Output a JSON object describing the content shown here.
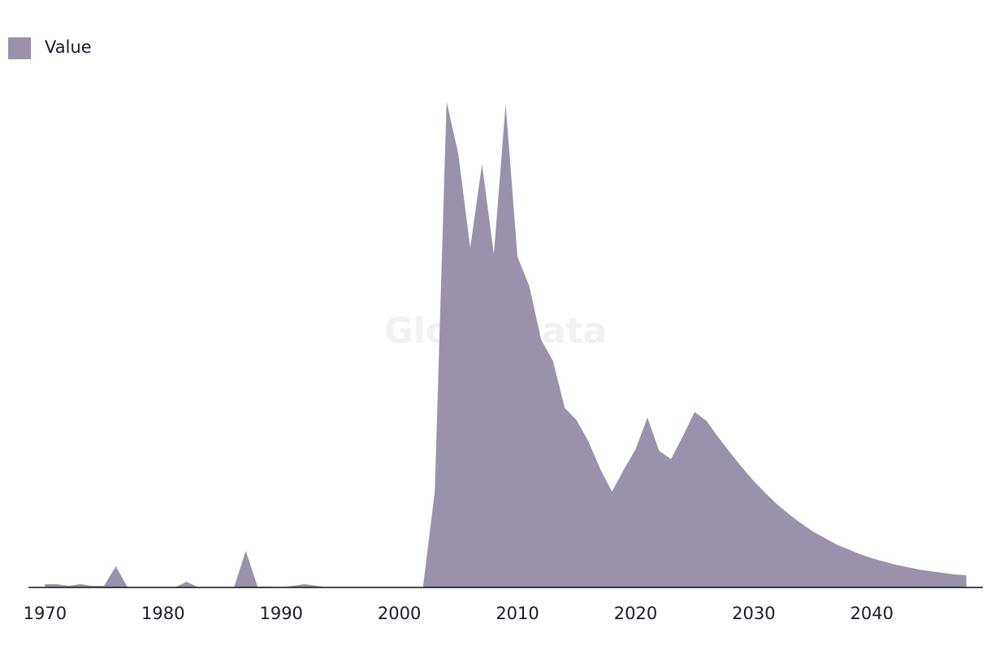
{
  "chart_data": {
    "type": "area",
    "watermark": "GlobalData",
    "x": [
      1970,
      1971,
      1972,
      1973,
      1974,
      1975,
      1976,
      1977,
      1978,
      1979,
      1980,
      1981,
      1982,
      1983,
      1984,
      1985,
      1986,
      1987,
      1988,
      1989,
      1990,
      1991,
      1992,
      1993,
      1994,
      1995,
      1996,
      1997,
      1998,
      1999,
      2000,
      2001,
      2002,
      2003,
      2004,
      2005,
      2006,
      2007,
      2008,
      2009,
      2010,
      2011,
      2012,
      2013,
      2014,
      2015,
      2016,
      2017,
      2018,
      2019,
      2020,
      2021,
      2022,
      2023,
      2024,
      2025,
      2026,
      2027,
      2028,
      2029,
      2030,
      2031,
      2032,
      2033,
      2034,
      2035,
      2036,
      2037,
      2038,
      2039,
      2040,
      2041,
      2042,
      2043,
      2044,
      2045,
      2046,
      2047,
      2048
    ],
    "series": [
      {
        "name": "Value",
        "color": "#9a92aa",
        "values": [
          4,
          4,
          2,
          4,
          2,
          2,
          26,
          0,
          0,
          0,
          0,
          0,
          7,
          0,
          0,
          0,
          0,
          45,
          1,
          1,
          0,
          2,
          4,
          2,
          0,
          0,
          0,
          0,
          0,
          0,
          0,
          0,
          0,
          118,
          598,
          533,
          418,
          521,
          410,
          595,
          407,
          371,
          305,
          279,
          221,
          206,
          180,
          146,
          118,
          145,
          170,
          209,
          168,
          158,
          186,
          216,
          205,
          185,
          166,
          148,
          131,
          116,
          102,
          90,
          79,
          69,
          61,
          53,
          47,
          41,
          36,
          32,
          28,
          25,
          22,
          20,
          18,
          16,
          15
        ]
      }
    ],
    "xlim": [
      1968.6,
      2049.4
    ],
    "xticks": [
      1970,
      1980,
      1990,
      2000,
      2010,
      2020,
      2030,
      2040
    ],
    "ylim": [
      0,
      600
    ],
    "legend": "top-left"
  }
}
